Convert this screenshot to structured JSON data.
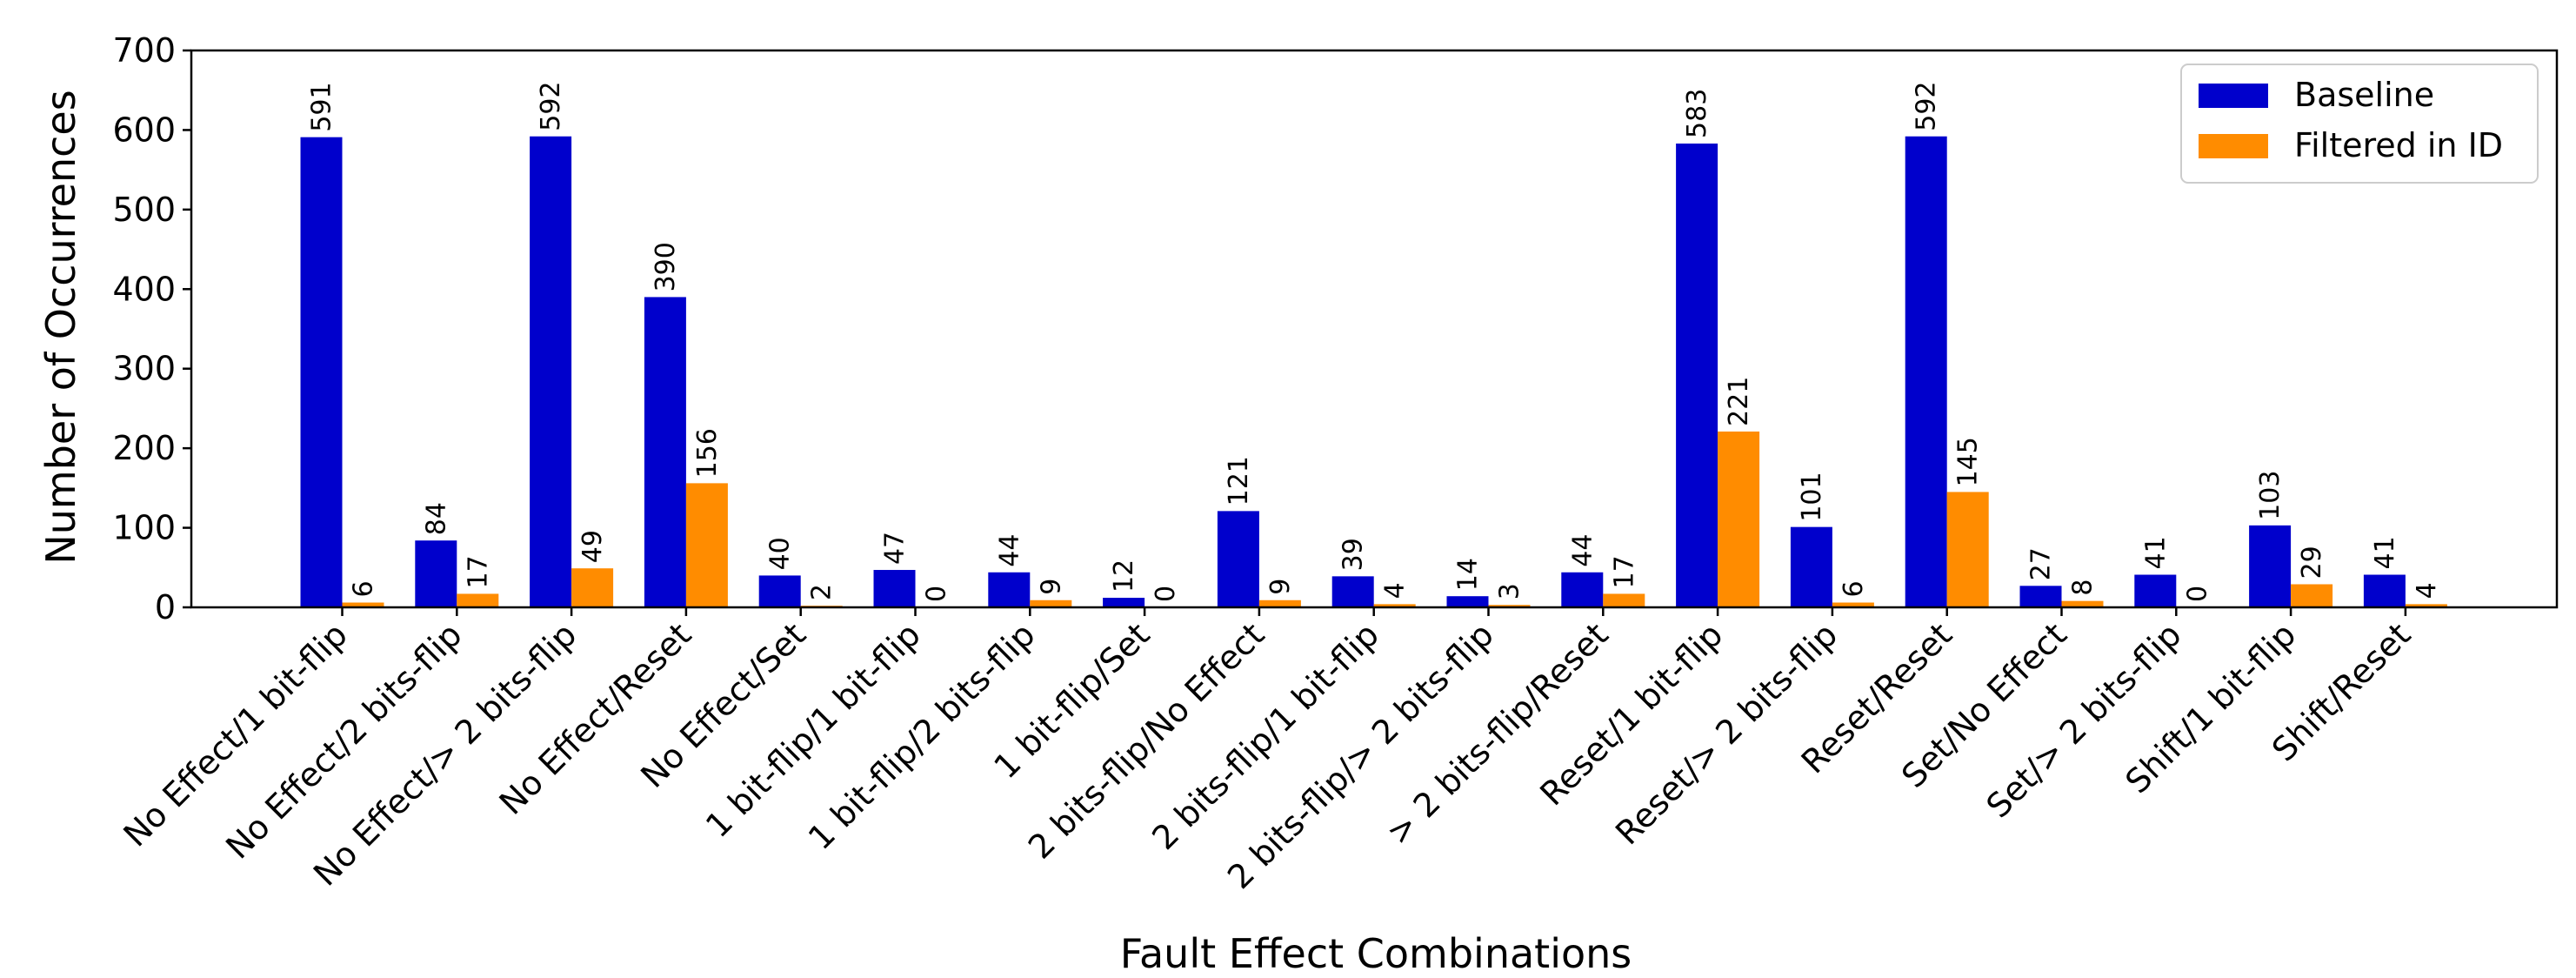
{
  "chart_data": {
    "type": "bar",
    "title": "",
    "xlabel": "Fault Effect Combinations",
    "ylabel": "Number of Occurrences",
    "ylim": [
      0,
      700
    ],
    "yticks": [
      0,
      100,
      200,
      300,
      400,
      500,
      600,
      700
    ],
    "grid": false,
    "legend_position": "top-right",
    "categories": [
      "No Effect/1 bit-flip",
      "No Effect/2 bits-flip",
      "No Effect/> 2 bits-flip",
      "No Effect/Reset",
      "No Effect/Set",
      "1 bit-flip/1 bit-flip",
      "1 bit-flip/2 bits-flip",
      "1 bit-flip/Set",
      "2 bits-flip/No Effect",
      "2 bits-flip/1 bit-flip",
      "2 bits-flip/> 2 bits-flip",
      "> 2 bits-flip/Reset",
      "Reset/1 bit-flip",
      "Reset/> 2 bits-flip",
      "Reset/Reset",
      "Set/No Effect",
      "Set/> 2 bits-flip",
      "Shift/1 bit-flip",
      "Shift/Reset"
    ],
    "series": [
      {
        "name": "Baseline",
        "color": "#0000cc",
        "values": [
          591,
          84,
          592,
          390,
          40,
          47,
          44,
          12,
          121,
          39,
          14,
          44,
          583,
          101,
          592,
          27,
          41,
          103,
          41
        ]
      },
      {
        "name": "Filtered in ID",
        "color": "#ff8c00",
        "values": [
          6,
          17,
          49,
          156,
          2,
          0,
          9,
          0,
          9,
          4,
          3,
          17,
          221,
          6,
          145,
          8,
          0,
          29,
          4
        ]
      }
    ]
  }
}
